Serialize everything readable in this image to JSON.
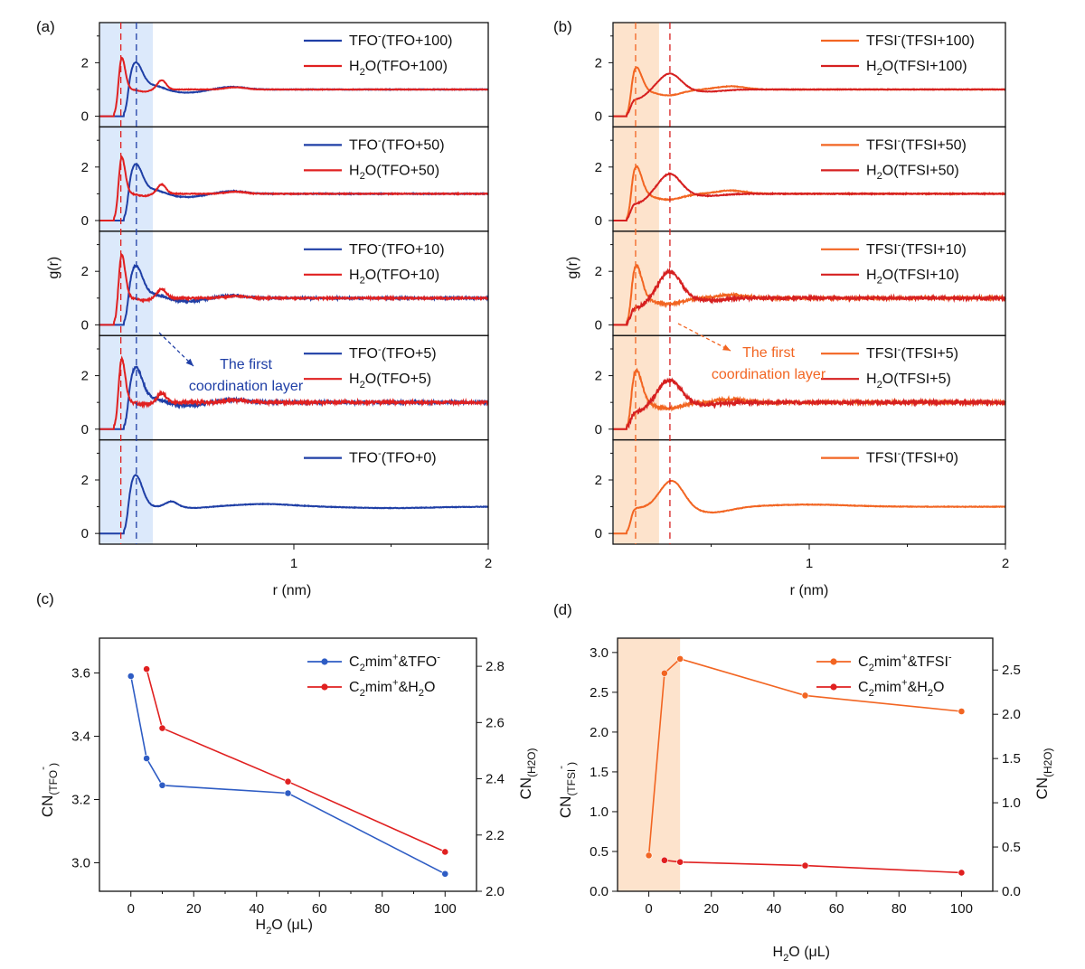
{
  "colors": {
    "tfo": "#1f3fa6",
    "h2o": "#e02020",
    "tfsi": "#f26522",
    "h2o_tfsi": "#d62020",
    "shade_blue": "#dce9fb",
    "shade_orange": "#fde3cc"
  },
  "chart_data": [
    {
      "id": "a",
      "panel_label": "(a)",
      "type": "line",
      "xlabel": "r (nm)",
      "ylabel": "g(r)",
      "xlim": [
        0.0,
        2.0
      ],
      "xticks": [
        {
          "v": 1,
          "label": "1"
        },
        {
          "v": 2,
          "label": "2"
        }
      ],
      "ylim": [
        -0.4,
        3.5
      ],
      "yticks": [
        0,
        2
      ],
      "shaded_region": [
        0.0,
        0.27
      ],
      "dashed_lines": [
        {
          "x": 0.11,
          "color": "h2o"
        },
        {
          "x": 0.19,
          "color": "tfo"
        }
      ],
      "annotation": {
        "line1": "The first",
        "line2": "coordination layer",
        "color": "#1f3fa6"
      },
      "subplots": [
        {
          "series": [
            {
              "name_main": "TFO",
              "name_sup": "-",
              "name_rest": "(TFO+100)",
              "color": "tfo",
              "peaks": [
                {
                  "r": 0.185,
                  "h": 2.0,
                  "w": 0.035
                }
              ],
              "onset": 0.125,
              "noise": 0.01,
              "kind": "anion"
            },
            {
              "name_main": "H",
              "name_sub": "2",
              "name_rest": "O(TFO+100)",
              "color": "h2o",
              "peaks": [
                {
                  "r": 0.11,
                  "h": 2.4,
                  "w": 0.02
                }
              ],
              "onset": 0.075,
              "noise": 0.01,
              "kind": "water"
            }
          ]
        },
        {
          "series": [
            {
              "name_main": "TFO",
              "name_sup": "-",
              "name_rest": "(TFO+50)",
              "color": "tfo",
              "peaks": [
                {
                  "r": 0.185,
                  "h": 2.1,
                  "w": 0.035
                }
              ],
              "onset": 0.125,
              "noise": 0.015,
              "kind": "anion"
            },
            {
              "name_main": "H",
              "name_sub": "2",
              "name_rest": "O(TFO+50)",
              "color": "h2o",
              "peaks": [
                {
                  "r": 0.11,
                  "h": 2.6,
                  "w": 0.02
                }
              ],
              "onset": 0.075,
              "noise": 0.015,
              "kind": "water"
            }
          ]
        },
        {
          "series": [
            {
              "name_main": "TFO",
              "name_sup": "-",
              "name_rest": "(TFO+10)",
              "color": "tfo",
              "peaks": [
                {
                  "r": 0.185,
                  "h": 2.2,
                  "w": 0.035
                }
              ],
              "onset": 0.125,
              "noise": 0.03,
              "kind": "anion"
            },
            {
              "name_main": "H",
              "name_sub": "2",
              "name_rest": "O(TFO+10)",
              "color": "h2o",
              "peaks": [
                {
                  "r": 0.11,
                  "h": 2.9,
                  "w": 0.02
                }
              ],
              "onset": 0.075,
              "noise": 0.03,
              "kind": "water"
            }
          ]
        },
        {
          "series": [
            {
              "name_main": "TFO",
              "name_sup": "-",
              "name_rest": "(TFO+5)",
              "color": "tfo",
              "peaks": [
                {
                  "r": 0.185,
                  "h": 2.3,
                  "w": 0.035
                }
              ],
              "onset": 0.125,
              "noise": 0.04,
              "kind": "anion"
            },
            {
              "name_main": "H",
              "name_sub": "2",
              "name_rest": "O(TFO+5)",
              "color": "h2o",
              "peaks": [
                {
                  "r": 0.11,
                  "h": 2.9,
                  "w": 0.02
                }
              ],
              "onset": 0.075,
              "noise": 0.05,
              "kind": "water"
            }
          ]
        },
        {
          "series": [
            {
              "name_main": "TFO",
              "name_sup": "-",
              "name_rest": "(TFO+0)",
              "color": "tfo",
              "peaks": [
                {
                  "r": 0.185,
                  "h": 2.2,
                  "w": 0.035
                }
              ],
              "onset": 0.125,
              "noise": 0.01,
              "kind": "anion0"
            }
          ]
        }
      ]
    },
    {
      "id": "b",
      "panel_label": "(b)",
      "type": "line",
      "xlabel": "r (nm)",
      "ylabel": "g(r)",
      "xlim": [
        0.0,
        2.0
      ],
      "xticks": [
        {
          "v": 1,
          "label": "1"
        },
        {
          "v": 2,
          "label": "2"
        }
      ],
      "ylim": [
        -0.4,
        3.5
      ],
      "yticks": [
        0,
        2
      ],
      "shaded_region": [
        0.0,
        0.23
      ],
      "dashed_lines": [
        {
          "x": 0.115,
          "color": "tfsi"
        },
        {
          "x": 0.29,
          "color": "h2o_tfsi"
        }
      ],
      "annotation": {
        "line1": "The first",
        "line2": "coordination layer",
        "color": "#f26522"
      },
      "subplots": [
        {
          "series": [
            {
              "name_main": "TFSI",
              "name_sup": "-",
              "name_rest": "(TFSI+100)",
              "color": "tfsi",
              "peaks": [
                {
                  "r": 0.115,
                  "h": 1.9,
                  "w": 0.03
                }
              ],
              "onset": 0.07,
              "noise": 0.01,
              "kind": "tfsi"
            },
            {
              "name_main": "H",
              "name_sub": "2",
              "name_rest": "O(TFSI+100)",
              "color": "h2o_tfsi",
              "peaks": [
                {
                  "r": 0.29,
                  "h": 1.6,
                  "w": 0.055
                }
              ],
              "onset": 0.07,
              "noise": 0.01,
              "kind": "tfsiwater"
            }
          ]
        },
        {
          "series": [
            {
              "name_main": "TFSI",
              "name_sup": "-",
              "name_rest": "(TFSI+50)",
              "color": "tfsi",
              "peaks": [
                {
                  "r": 0.115,
                  "h": 2.1,
                  "w": 0.03
                }
              ],
              "onset": 0.07,
              "noise": 0.015,
              "kind": "tfsi"
            },
            {
              "name_main": "H",
              "name_sub": "2",
              "name_rest": "O(TFSI+50)",
              "color": "h2o_tfsi",
              "peaks": [
                {
                  "r": 0.29,
                  "h": 1.75,
                  "w": 0.055
                }
              ],
              "onset": 0.07,
              "noise": 0.015,
              "kind": "tfsiwater"
            }
          ]
        },
        {
          "series": [
            {
              "name_main": "TFSI",
              "name_sup": "-",
              "name_rest": "(TFSI+10)",
              "color": "tfsi",
              "peaks": [
                {
                  "r": 0.115,
                  "h": 2.3,
                  "w": 0.03
                }
              ],
              "onset": 0.07,
              "noise": 0.04,
              "kind": "tfsi"
            },
            {
              "name_main": "H",
              "name_sub": "2",
              "name_rest": "O(TFSI+10)",
              "color": "h2o_tfsi",
              "peaks": [
                {
                  "r": 0.29,
                  "h": 2.0,
                  "w": 0.055
                }
              ],
              "onset": 0.07,
              "noise": 0.05,
              "kind": "tfsiwater"
            }
          ]
        },
        {
          "series": [
            {
              "name_main": "TFSI",
              "name_sup": "-",
              "name_rest": "(TFSI+5)",
              "color": "tfsi",
              "peaks": [
                {
                  "r": 0.115,
                  "h": 2.3,
                  "w": 0.03
                }
              ],
              "onset": 0.07,
              "noise": 0.05,
              "kind": "tfsi"
            },
            {
              "name_main": "H",
              "name_sub": "2",
              "name_rest": "O(TFSI+5)",
              "color": "h2o_tfsi",
              "peaks": [
                {
                  "r": 0.29,
                  "h": 1.85,
                  "w": 0.055
                }
              ],
              "onset": 0.07,
              "noise": 0.06,
              "kind": "tfsiwater"
            }
          ]
        },
        {
          "series": [
            {
              "name_main": "TFSI",
              "name_sup": "-",
              "name_rest": "(TFSI+0)",
              "color": "tfsi",
              "peaks": [
                {
                  "r": 0.3,
                  "h": 2.0,
                  "w": 0.06
                }
              ],
              "onset": 0.07,
              "noise": 0.01,
              "kind": "tfsi0"
            }
          ]
        }
      ]
    },
    {
      "id": "c",
      "panel_label": "(c)",
      "type": "line",
      "xlabel": {
        "main": "H",
        "sub": "2",
        "rest": "O (μL)"
      },
      "ylabel_left": {
        "main": "CN",
        "sub": "(TFO",
        "sup": "-",
        "close": ")"
      },
      "ylabel_right": {
        "main": "CN",
        "sub": "(H",
        "sub2": "2",
        "close": "O)"
      },
      "x": [
        0,
        5,
        10,
        50,
        100
      ],
      "xlim": [
        -10,
        110
      ],
      "xticks": [
        0,
        20,
        40,
        60,
        80,
        100
      ],
      "ylim_left": [
        2.91,
        3.71
      ],
      "yticks_left": [
        "3.0",
        "3.2",
        "3.4",
        "3.6"
      ],
      "ylim_right": [
        2.0,
        2.9
      ],
      "yticks_right": [
        "2.0",
        "2.2",
        "2.4",
        "2.6",
        "2.8"
      ],
      "series": [
        {
          "name": "C2mim+&TFO-",
          "lbl": {
            "a": "C",
            "a_sub": "2",
            "b": "mim",
            "b_sup": "+",
            "c": "&TFO",
            "c_sup": "-"
          },
          "axis": "left",
          "color": "#2e5cc4",
          "x": [
            0,
            5,
            10,
            50,
            100
          ],
          "values": [
            3.59,
            3.33,
            3.245,
            3.22,
            2.965
          ]
        },
        {
          "name": "C2mim+&H2O",
          "lbl": {
            "a": "C",
            "a_sub": "2",
            "b": "mim",
            "b_sup": "+",
            "c": "&H",
            "c_sub": "2",
            "d": "O"
          },
          "axis": "right",
          "color": "#e02020",
          "x": [
            5,
            10,
            50,
            100
          ],
          "values": [
            2.79,
            2.58,
            2.39,
            2.14
          ]
        }
      ]
    },
    {
      "id": "d",
      "panel_label": "(d)",
      "type": "line",
      "xlabel": {
        "main": "H",
        "sub": "2",
        "rest": "O (μL)"
      },
      "ylabel_left": {
        "main": "CN",
        "sub": "(TFSI",
        "sup": "-",
        "close": ")"
      },
      "ylabel_right": {
        "main": "CN",
        "sub": "(H",
        "sub2": "2",
        "close": "O)"
      },
      "x": [
        0,
        5,
        10,
        50,
        100
      ],
      "xlim": [
        -10,
        110
      ],
      "xticks": [
        0,
        20,
        40,
        60,
        80,
        100
      ],
      "ylim_left": [
        0.0,
        3.18
      ],
      "yticks_left": [
        "0.0",
        "0.5",
        "1.0",
        "1.5",
        "2.0",
        "2.5",
        "3.0"
      ],
      "ylim_right": [
        0.0,
        2.86
      ],
      "yticks_right": [
        "0.0",
        "0.5",
        "1.0",
        "1.5",
        "2.0",
        "2.5"
      ],
      "shaded_region": [
        -10,
        10
      ],
      "series": [
        {
          "name": "C2mim+&TFSI-",
          "lbl": {
            "a": "C",
            "a_sub": "2",
            "b": "mim",
            "b_sup": "+",
            "c": "&TFSI",
            "c_sup": "-"
          },
          "axis": "left",
          "color": "#f26522",
          "x": [
            0,
            5,
            10,
            50,
            100
          ],
          "values": [
            0.45,
            2.74,
            2.92,
            2.46,
            2.26
          ]
        },
        {
          "name": "C2mim+&H2O",
          "lbl": {
            "a": "C",
            "a_sub": "2",
            "b": "mim",
            "b_sup": "+",
            "c": "&H",
            "c_sub": "2",
            "d": "O"
          },
          "axis": "right",
          "color": "#e02020",
          "x": [
            5,
            10,
            50,
            100
          ],
          "values": [
            0.35,
            0.33,
            0.29,
            0.21
          ]
        }
      ]
    }
  ]
}
